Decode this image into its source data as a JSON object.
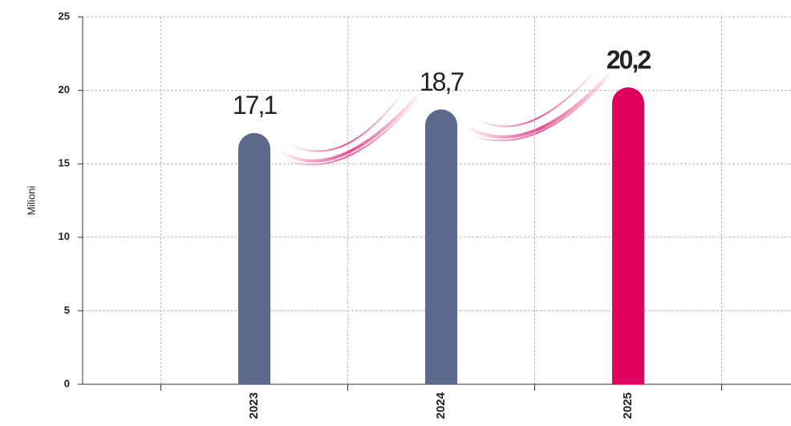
{
  "chart_data": {
    "type": "bar",
    "y_label": "Milioni",
    "categories": [
      "2023",
      "2024",
      "2025"
    ],
    "values": [
      17.1,
      18.7,
      20.2
    ],
    "value_labels": [
      "17,1",
      "18,7",
      "20,2"
    ],
    "colors": [
      "#5b6a8c",
      "#5b6a8c",
      "#e0005e"
    ],
    "ylim": [
      0,
      25
    ],
    "yticks": [
      0,
      5,
      10,
      15,
      20,
      25
    ],
    "grid": true
  }
}
